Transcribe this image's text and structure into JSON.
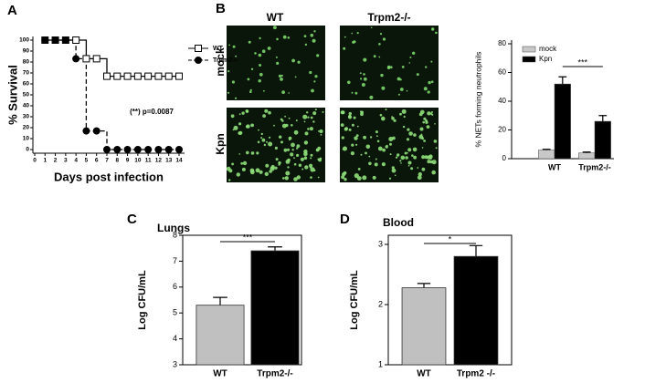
{
  "panel_labels": [
    "A",
    "B",
    "C",
    "D"
  ],
  "image_grid": {
    "columns": [
      "WT",
      "Trpm2-/-"
    ],
    "rows": [
      "mock",
      "Kpn"
    ]
  },
  "chart_data": [
    {
      "type": "line",
      "xlabel": "Days post infection",
      "ylabel": "% Survival",
      "annotation": "(**) p=0.0087",
      "x": [
        1,
        2,
        3,
        4,
        5,
        6,
        7,
        8,
        9,
        10,
        11,
        12,
        13,
        14
      ],
      "series": [
        {
          "name": "WT",
          "color": "#000000",
          "marker": "square-open",
          "dash": "solid",
          "values": [
            100,
            100,
            100,
            100,
            83,
            83,
            67,
            67,
            67,
            67,
            67,
            67,
            67,
            67
          ]
        },
        {
          "name": "Trpm2-/-",
          "color": "#000000",
          "marker": "circle",
          "dash": "dashed",
          "values": [
            100,
            100,
            100,
            83,
            17,
            17,
            0,
            0,
            0,
            0,
            0,
            0,
            0,
            0
          ]
        }
      ],
      "xlim": [
        0,
        14
      ],
      "xticks": [
        0,
        1,
        2,
        3,
        4,
        5,
        6,
        7,
        8,
        9,
        10,
        11,
        12,
        13,
        14
      ],
      "ylim": [
        0,
        100
      ],
      "yticks": [
        0,
        10,
        20,
        30,
        40,
        50,
        60,
        70,
        80,
        90,
        100
      ]
    },
    {
      "type": "bar",
      "ylabel": "% NETs forming neutrophils",
      "significance": "***",
      "categories": [
        "WT",
        "Trpm2-/-"
      ],
      "series": [
        {
          "name": "mock",
          "color": "#c8c8c8",
          "values": [
            6,
            4
          ],
          "errors": [
            0.5,
            0.6
          ]
        },
        {
          "name": "Kpn",
          "color": "#000000",
          "values": [
            52,
            26
          ],
          "errors": [
            5,
            4
          ]
        }
      ],
      "ylim": [
        0,
        80
      ],
      "yticks": [
        0,
        20,
        40,
        60,
        80
      ]
    },
    {
      "type": "bar",
      "title": "Lungs",
      "ylabel": "Log CFU/mL",
      "significance": "***",
      "categories": [
        "WT",
        "Trpm2-/-"
      ],
      "values": [
        5.3,
        7.4
      ],
      "errors": [
        0.3,
        0.15
      ],
      "colors": [
        "#c0c0c0",
        "#000000"
      ],
      "ylim": [
        3,
        8
      ],
      "yticks": [
        3,
        4,
        5,
        6,
        7,
        8
      ]
    },
    {
      "type": "bar",
      "title": "Blood",
      "ylabel": "Log CFU/mL",
      "significance": "*",
      "categories": [
        "WT",
        "Trpm2 -/-"
      ],
      "values": [
        2.28,
        2.8
      ],
      "errors": [
        0.07,
        0.18
      ],
      "colors": [
        "#c0c0c0",
        "#000000"
      ],
      "ylim": [
        1,
        3
      ],
      "yticks": [
        1,
        2,
        3
      ]
    }
  ]
}
